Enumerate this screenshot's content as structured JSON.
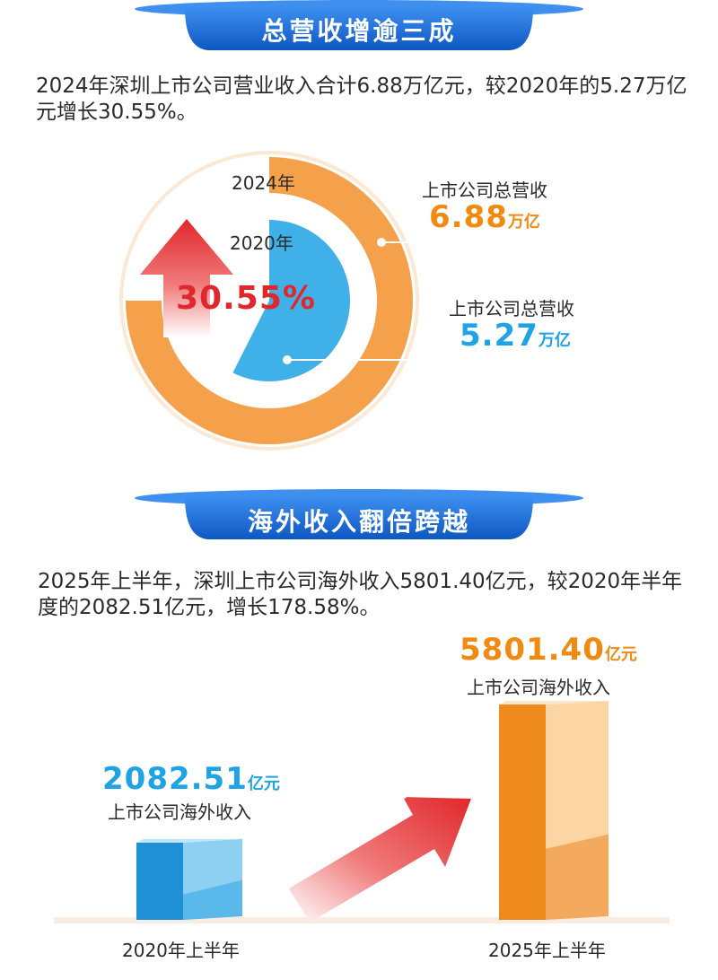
{
  "section1": {
    "banner_title": "总营收增逾三成",
    "paragraph": "2024年深圳上市公司营业收入合计6.88万亿元，较2020年的5.27万亿元增长30.55%。"
  },
  "section2": {
    "banner_title": "海外收入翻倍跨越",
    "paragraph": "2025年上半年，深圳上市公司海外收入5801.40亿元，较2020年半年度的2082.51亿元，增长178.58%。"
  },
  "colors": {
    "banner": "#1a6fd6",
    "orange": "#f5a04a",
    "blue": "#3fb0e8",
    "red": "#e0272c",
    "orange_text": "#f28a12",
    "blue_text": "#1fa3e6"
  },
  "chart_data": [
    {
      "type": "pie",
      "title": "",
      "categories": [
        "2024年",
        "2020年"
      ],
      "values": [
        6.88,
        5.27
      ],
      "unit": "万亿",
      "growth_label": "30.55%",
      "annotations": [
        {
          "label": "上市公司总营收",
          "value": "6.88",
          "unit": "万亿"
        },
        {
          "label": "上市公司总营收",
          "value": "5.27",
          "unit": "万亿"
        }
      ]
    },
    {
      "type": "bar",
      "title": "",
      "categories": [
        "2020年上半年",
        "2025年上半年"
      ],
      "values": [
        2082.51,
        5801.4
      ],
      "unit": "亿元",
      "growth_label": "178.58%",
      "annotations": [
        {
          "label": "上市公司海外收入",
          "value": "2082.51",
          "unit": "亿元"
        },
        {
          "label": "上市公司海外收入",
          "value": "5801.40",
          "unit": "亿元"
        }
      ]
    }
  ]
}
